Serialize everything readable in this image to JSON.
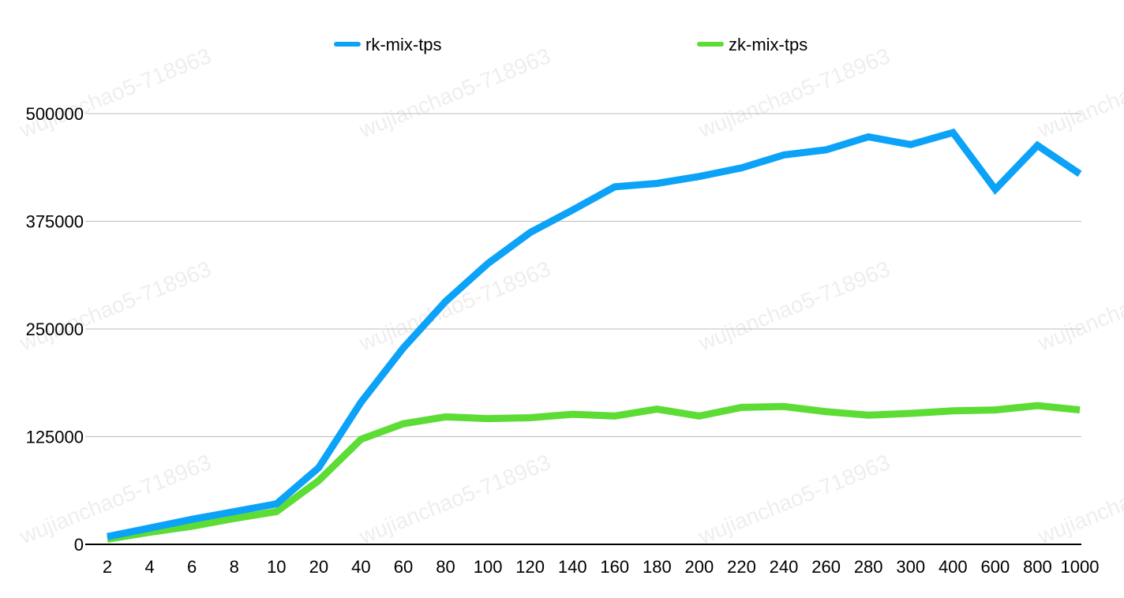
{
  "watermark": "wujianchao5-718963",
  "chart_data": {
    "type": "line",
    "title": "",
    "xlabel": "",
    "ylabel": "",
    "categories": [
      "2",
      "4",
      "6",
      "8",
      "10",
      "20",
      "40",
      "60",
      "80",
      "100",
      "120",
      "140",
      "160",
      "180",
      "200",
      "220",
      "240",
      "260",
      "280",
      "300",
      "400",
      "600",
      "800",
      "1000"
    ],
    "ylim": [
      0,
      500000
    ],
    "yticks": [
      0,
      125000,
      250000,
      375000,
      500000
    ],
    "ytick_labels": [
      "0",
      "125000",
      "250000",
      "375000",
      "500000"
    ],
    "grid": "horizontal",
    "legend_position": "top",
    "series": [
      {
        "name": "rk-mix-tps",
        "color": "#0ba2f8",
        "values": [
          9000,
          19000,
          29000,
          38000,
          47000,
          89000,
          165000,
          228000,
          282000,
          326000,
          362000,
          388000,
          415000,
          419000,
          427000,
          437000,
          452000,
          458000,
          473000,
          464000,
          478000,
          412000,
          463000,
          430000
        ]
      },
      {
        "name": "zk-mix-tps",
        "color": "#5cdc34",
        "values": [
          6000,
          14000,
          21000,
          30000,
          38000,
          74000,
          122000,
          140000,
          148000,
          146000,
          147000,
          151000,
          149000,
          157000,
          149000,
          159000,
          160000,
          154000,
          150000,
          152000,
          155000,
          156000,
          161000,
          156000
        ]
      }
    ]
  }
}
